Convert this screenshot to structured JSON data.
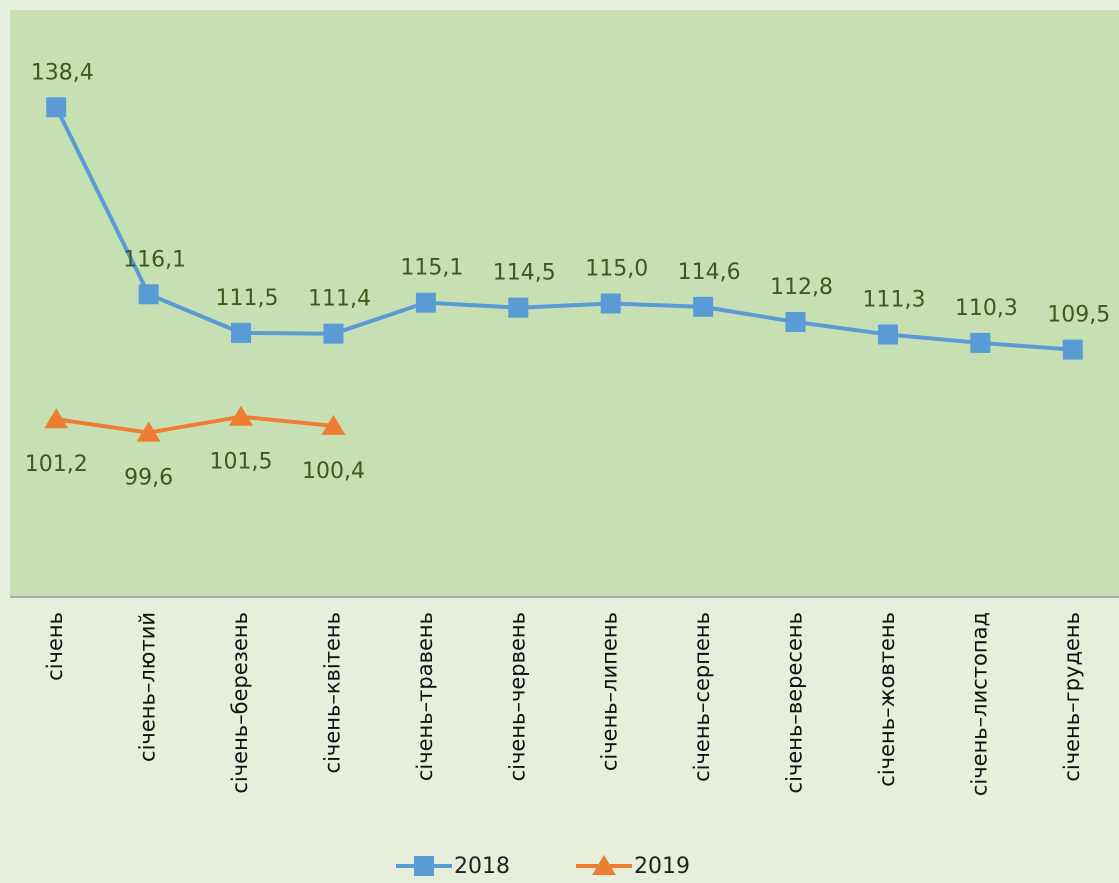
{
  "chart_data": {
    "type": "line",
    "categories": [
      "січень",
      "січень–лютий",
      "січень–березень",
      "січень–квітень",
      "січень–травень",
      "січень–червень",
      "січень–липень",
      "січень–серпень",
      "січень–вересень",
      "січень–жовтень",
      "січень–листопад",
      "січень–грудень"
    ],
    "ylim": [
      80,
      150
    ],
    "series": [
      {
        "name": "2018",
        "color": "#5b9bd5",
        "marker": "square",
        "values": [
          138.4,
          116.1,
          111.5,
          111.4,
          115.1,
          114.5,
          115.0,
          114.6,
          112.8,
          111.3,
          110.3,
          109.5
        ],
        "value_labels": [
          "138,4",
          "116,1",
          "111,5",
          "111,4",
          "115,1",
          "114,5",
          "115,0",
          "114,6",
          "112,8",
          "111,3",
          "110,3",
          "109,5"
        ]
      },
      {
        "name": "2019",
        "color": "#ed7d31",
        "marker": "triangle",
        "values": [
          101.2,
          99.6,
          101.5,
          100.4,
          null,
          null,
          null,
          null,
          null,
          null,
          null,
          null
        ],
        "value_labels": [
          "101,2",
          "99,6",
          "101,5",
          "100,4",
          null,
          null,
          null,
          null,
          null,
          null,
          null,
          null
        ]
      }
    ],
    "legend": "bottom"
  }
}
